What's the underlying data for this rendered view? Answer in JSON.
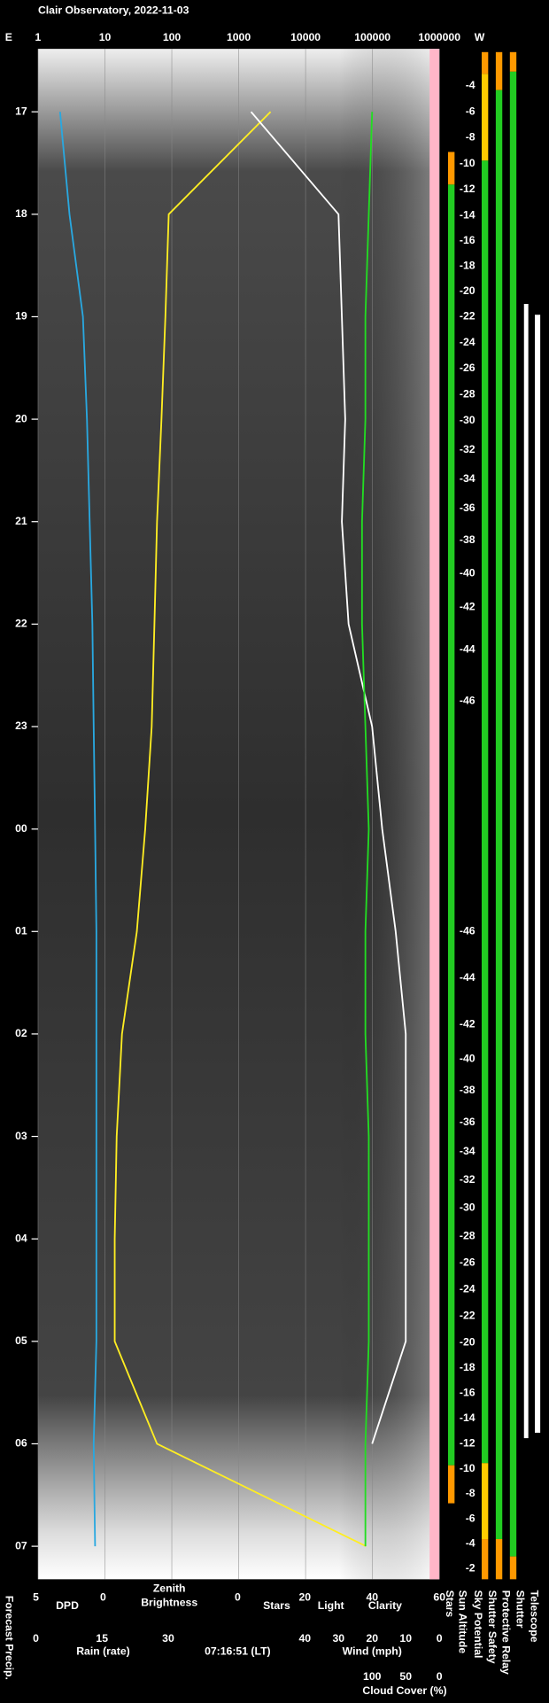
{
  "chart_data": {
    "type": "line",
    "title": "Clair Observatory, 2022-11-03",
    "x_label_left": "E",
    "x_label_right": "W",
    "xscale": "log",
    "xlim": [
      1,
      1000000
    ],
    "xticks": [
      1,
      10,
      100,
      1000,
      10000,
      100000,
      1000000
    ],
    "grid": true,
    "categories": [
      "17",
      "18",
      "19",
      "20",
      "21",
      "22",
      "23",
      "00",
      "01",
      "02",
      "03",
      "04",
      "05",
      "06",
      "07"
    ],
    "time_label": "07:16:51 (LT)",
    "forecast_label": "Forecast Precip.",
    "axes": {
      "dpd": {
        "labels": [
          "DPD"
        ],
        "colors": [
          "#29a8e0"
        ],
        "lim": [
          5,
          0
        ],
        "ticks": [
          5,
          0
        ]
      },
      "zenith": {
        "labels": [
          "Zenith",
          "Brightness"
        ],
        "colors": [
          "#ffff33"
        ]
      },
      "sky": {
        "labels": [
          "Stars",
          "Light",
          "Clarity"
        ],
        "colors": [
          "#ffffff",
          "#ffff33",
          "#33dd33"
        ],
        "lim": [
          0,
          60
        ],
        "ticks": [
          0,
          20,
          40,
          60
        ]
      },
      "rain": {
        "labels": [
          "Rain (rate)"
        ],
        "colors": [
          "#29a8e0"
        ],
        "lim": [
          0,
          30
        ],
        "ticks": [
          0,
          15,
          30
        ]
      },
      "wind": {
        "labels": [
          "Wind (mph)"
        ],
        "colors": [
          "#ff99cc"
        ],
        "lim": [
          40,
          0
        ],
        "ticks": [
          40,
          30,
          20,
          10,
          0
        ]
      },
      "cloud": {
        "labels": [
          "Cloud Cover (%)"
        ],
        "colors": [
          "#ee22ee"
        ],
        "lim": [
          100,
          0
        ],
        "ticks": [
          100,
          50,
          0
        ]
      }
    },
    "series": [
      {
        "axis": "dpd",
        "color": "#29a8e0",
        "values": [
          3.2,
          2.5,
          1.5,
          1.2,
          1.0,
          0.8,
          0.7,
          0.6,
          0.5,
          0.5,
          0.5,
          0.5,
          0.5,
          0.7,
          0.6
        ]
      },
      {
        "axis": "x",
        "color": "#ffee22",
        "values": [
          3000,
          90,
          80,
          70,
          60,
          55,
          50,
          40,
          30,
          18,
          15,
          14,
          14,
          60,
          80000
        ]
      },
      {
        "axis": "sky",
        "color": "#ffffff",
        "values": [
          4,
          30,
          31,
          32,
          31,
          33,
          40,
          43,
          47,
          50,
          50,
          50,
          50,
          40,
          null
        ]
      },
      {
        "axis": "sky",
        "color": "#22dd22",
        "values": [
          40,
          39,
          38,
          38,
          37,
          37,
          38,
          39,
          38,
          38,
          39,
          39,
          39,
          38,
          38
        ]
      }
    ],
    "sun_altitude": {
      "values": [
        -6,
        -13.9,
        -22,
        -29.9,
        -36.9,
        -43,
        -47,
        -48,
        -46,
        -41.6,
        -35.1,
        -27.8,
        -20.1,
        -12,
        -3.8
      ],
      "evening_ticks": [
        -4,
        -6,
        -8,
        -10,
        -12,
        -14,
        -16,
        -18,
        -20,
        -22,
        -24,
        -26,
        -28,
        -30,
        -32,
        -34,
        -36,
        -38,
        -40,
        -42,
        -44,
        -46
      ],
      "morning_ticks": [
        -46,
        -44,
        -42,
        -40,
        -38,
        -36,
        -34,
        -32,
        -30,
        -28,
        -26,
        -24,
        -22,
        -20,
        -18,
        -16,
        -14,
        -12,
        -10,
        -8,
        -6,
        -4,
        -2
      ]
    },
    "status_labels": [
      "Stars",
      "Sun Altitude",
      "Sky Potential",
      "Shutter Safety",
      "Protective Relay",
      "Shutter",
      "Telescope"
    ]
  }
}
